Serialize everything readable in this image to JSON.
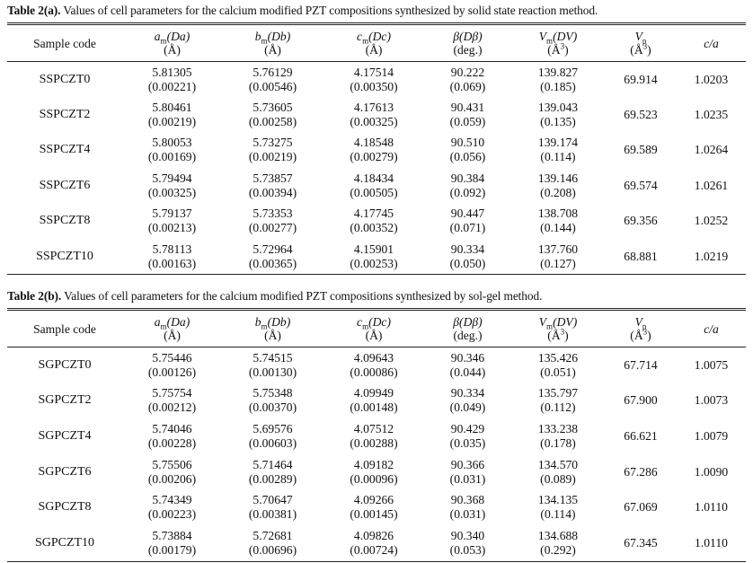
{
  "table_a": {
    "label": "Table 2(a).",
    "caption": " Values of cell parameters for the calcium modified PZT compositions synthesized by solid state reaction method.",
    "headers": {
      "sample": "Sample code",
      "a": {
        "sym": "a",
        "sub": "m",
        "rest": "(Da)",
        "unit": "(Å)"
      },
      "b": {
        "sym": "b",
        "sub": "m",
        "rest": "(Db)",
        "unit": "(Å)"
      },
      "c": {
        "sym": "c",
        "sub": "m",
        "rest": "(Dc)",
        "unit": "(Å)"
      },
      "beta": {
        "sym": "β(Dβ)",
        "unit": "(deg.)"
      },
      "vm": {
        "sym": "V",
        "sub": "m",
        "rest": "(DV)",
        "unit_pre": "(Å",
        "unit_sup": "3",
        "unit_post": ")"
      },
      "vp": {
        "sym": "V",
        "sub": "p",
        "unit_pre": "(Å",
        "unit_sup": "3",
        "unit_post": ")"
      },
      "ca": "c/a"
    },
    "rows": [
      {
        "code": "SSPCZT0",
        "a": "5.81305",
        "a_err": "(0.00221)",
        "b": "5.76129",
        "b_err": "(0.00546)",
        "c": "4.17514",
        "c_err": "(0.00350)",
        "beta": "90.222",
        "beta_err": "(0.069)",
        "vm": "139.827",
        "vm_err": "(0.185)",
        "vp": "69.914",
        "ca": "1.0203"
      },
      {
        "code": "SSPCZT2",
        "a": "5.80461",
        "a_err": "(0.00219)",
        "b": "5.73605",
        "b_err": "(0.00258)",
        "c": "4.17613",
        "c_err": "(0.00325)",
        "beta": "90.431",
        "beta_err": "(0.059)",
        "vm": "139.043",
        "vm_err": "(0.135)",
        "vp": "69.523",
        "ca": "1.0235"
      },
      {
        "code": "SSPCZT4",
        "a": "5.80053",
        "a_err": "(0.00169)",
        "b": "5.73275",
        "b_err": "(0.00219)",
        "c": "4.18548",
        "c_err": "(0.00279)",
        "beta": "90.510",
        "beta_err": "(0.056)",
        "vm": "139.174",
        "vm_err": "(0.114)",
        "vp": "69.589",
        "ca": "1.0264"
      },
      {
        "code": "SSPCZT6",
        "a": "5.79494",
        "a_err": "(0.00325)",
        "b": "5.73857",
        "b_err": "(0.00394)",
        "c": "4.18434",
        "c_err": "(0.00505)",
        "beta": "90.384",
        "beta_err": "(0.092)",
        "vm": "139.146",
        "vm_err": "(0.208)",
        "vp": "69.574",
        "ca": "1.0261"
      },
      {
        "code": "SSPCZT8",
        "a": "5.79137",
        "a_err": "(0.00213)",
        "b": "5.73353",
        "b_err": "(0.00277)",
        "c": "4.17745",
        "c_err": "(0.00352)",
        "beta": "90.447",
        "beta_err": "(0.071)",
        "vm": "138.708",
        "vm_err": "(0.144)",
        "vp": "69.356",
        "ca": "1.0252"
      },
      {
        "code": "SSPCZT10",
        "a": "5.78113",
        "a_err": "(0.00163)",
        "b": "5.72964",
        "b_err": "(0.00365)",
        "c": "4.15901",
        "c_err": "(0.00253)",
        "beta": "90.334",
        "beta_err": "(0.050)",
        "vm": "137.760",
        "vm_err": "(0.127)",
        "vp": "68.881",
        "ca": "1.0219"
      }
    ]
  },
  "table_b": {
    "label": "Table 2(b).",
    "caption": " Values of cell parameters for the calcium modified PZT compositions synthesized by sol-gel method.",
    "headers": {
      "sample": "Sample code",
      "a": {
        "sym": "a",
        "sub": "m",
        "rest": "(Da)",
        "unit": "(Å)"
      },
      "b": {
        "sym": "b",
        "sub": "m",
        "rest": "(Db)",
        "unit": "(Å)"
      },
      "c": {
        "sym": "c",
        "sub": "m",
        "rest": "(Dc)",
        "unit": "(Å)"
      },
      "beta": {
        "sym": "β(Dβ)",
        "unit": "(deg.)"
      },
      "vm": {
        "sym": "V",
        "sub": "m",
        "rest": "(DV)",
        "unit_pre": "(Å",
        "unit_sup": "3",
        "unit_post": ")"
      },
      "vp": {
        "sym": "V",
        "sub": "p",
        "unit_pre": "(Å",
        "unit_sup": "3",
        "unit_post": ")"
      },
      "ca": "c/a"
    },
    "rows": [
      {
        "code": "SGPCZT0",
        "a": "5.75446",
        "a_err": "(0.00126)",
        "b": "5.74515",
        "b_err": "(0.00130)",
        "c": "4.09643",
        "c_err": "(0.00086)",
        "beta": "90.346",
        "beta_err": "(0.044)",
        "vm": "135.426",
        "vm_err": "(0.051)",
        "vp": "67.714",
        "ca": "1.0075"
      },
      {
        "code": "SGPCZT2",
        "a": "5.75754",
        "a_err": "(0.00212)",
        "b": "5.75348",
        "b_err": "(0.00370)",
        "c": "4.09949",
        "c_err": "(0.00148)",
        "beta": "90.334",
        "beta_err": "(0.049)",
        "vm": "135.797",
        "vm_err": "(0.112)",
        "vp": "67.900",
        "ca": "1.0073"
      },
      {
        "code": "SGPCZT4",
        "a": "5.74046",
        "a_err": "(0.00228)",
        "b": "5.69576",
        "b_err": "(0.00603)",
        "c": "4.07512",
        "c_err": "(0.00288)",
        "beta": "90.429",
        "beta_err": "(0.035)",
        "vm": "133.238",
        "vm_err": "(0.178)",
        "vp": "66.621",
        "ca": "1.0079"
      },
      {
        "code": "SGPCZT6",
        "a": "5.75506",
        "a_err": "(0.00206)",
        "b": "5.71464",
        "b_err": "(0.00289)",
        "c": "4.09182",
        "c_err": "(0.00096)",
        "beta": "90.366",
        "beta_err": "(0.031)",
        "vm": "134.570",
        "vm_err": "(0.089)",
        "vp": "67.286",
        "ca": "1.0090"
      },
      {
        "code": "SGPCZT8",
        "a": "5.74349",
        "a_err": "(0.00223)",
        "b": "5.70647",
        "b_err": "(0.00381)",
        "c": "4.09266",
        "c_err": "(0.00145)",
        "beta": "90.368",
        "beta_err": "(0.031)",
        "vm": "134.135",
        "vm_err": "(0.114)",
        "vp": "67.069",
        "ca": "1.0110"
      },
      {
        "code": "SGPCZT10",
        "a": "5.73884",
        "a_err": "(0.00179)",
        "b": "5.72681",
        "b_err": "(0.00696)",
        "c": "4.09826",
        "c_err": "(0.00724)",
        "beta": "90.340",
        "beta_err": "(0.053)",
        "vm": "134.688",
        "vm_err": "(0.292)",
        "vp": "67.345",
        "ca": "1.0110"
      }
    ]
  }
}
